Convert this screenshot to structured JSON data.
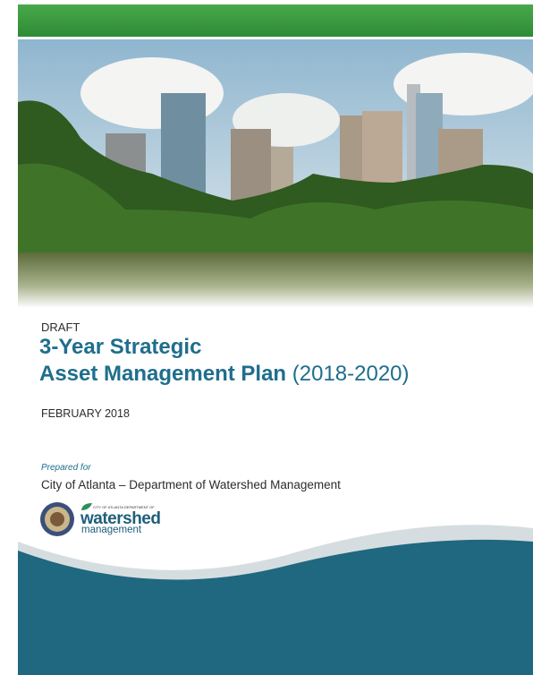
{
  "header": {
    "label": "DRAFT",
    "title_line1": "3-Year Strategic",
    "title_line2": "Asset Management Plan",
    "title_years": "(2018-2020)",
    "date": "FEBRUARY 2018"
  },
  "prepared": {
    "label": "Prepared for",
    "client": "City of Atlanta – Department of Watershed Management"
  },
  "logo": {
    "small": "CITY OF ATLANTA DEPARTMENT OF",
    "name": "watershed",
    "sub": "management"
  }
}
